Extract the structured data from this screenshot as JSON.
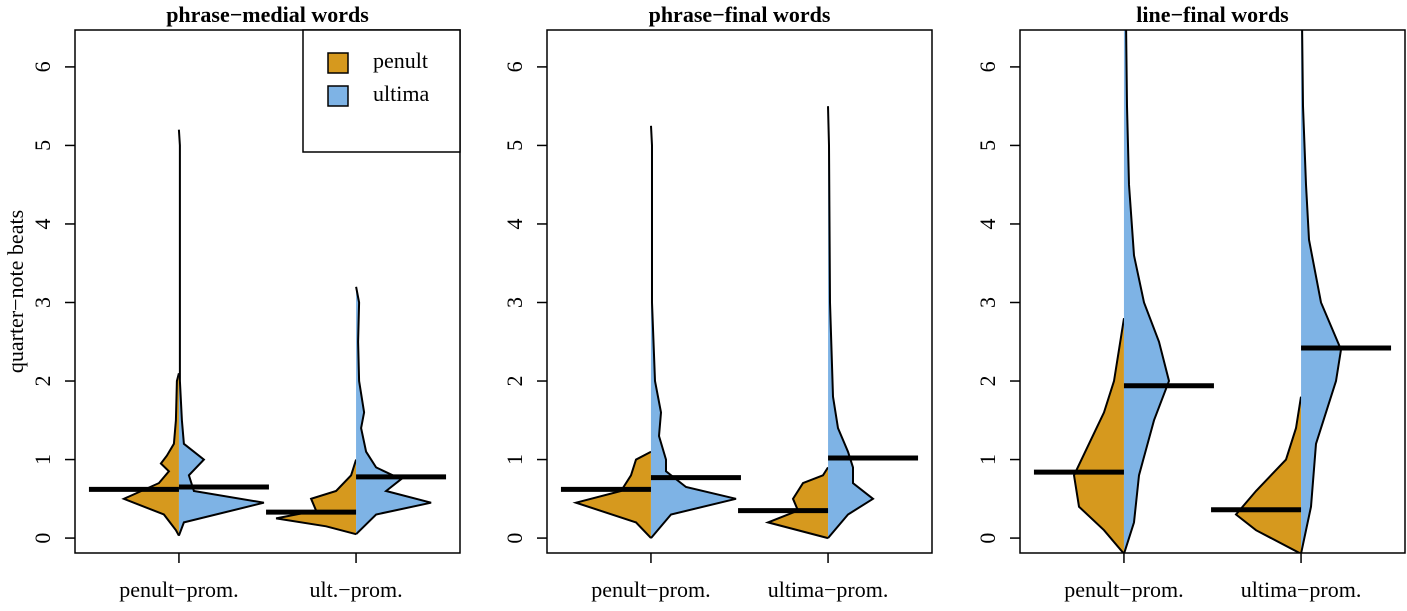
{
  "chart_data": [
    {
      "type": "violin",
      "title": "phrase−medial words",
      "ylabel": "quarter−note beats",
      "categories": [
        "penult−prom.",
        "ult.−prom."
      ],
      "ylim": [
        -0.19,
        6.47
      ],
      "yticks": [
        0,
        1,
        2,
        3,
        4,
        5,
        6
      ],
      "legend": "topright",
      "series": [
        {
          "name": "penult",
          "color": "#d6991e",
          "medians": [
            0.62,
            0.33
          ],
          "violins": [
            {
              "y": [
                0.03,
                0.1,
                0.3,
                0.5,
                0.7,
                0.85,
                0.95,
                1.05,
                1.2,
                1.5,
                2.0,
                2.1
              ],
              "density": [
                0,
                0.03,
                0.15,
                0.55,
                0.2,
                0.1,
                0.18,
                0.12,
                0.05,
                0.03,
                0.02,
                0
              ]
            },
            {
              "y": [
                0.05,
                0.15,
                0.25,
                0.35,
                0.5,
                0.6,
                0.8,
                1.0
              ],
              "density": [
                0,
                0.3,
                0.8,
                0.4,
                0.45,
                0.2,
                0.05,
                0
              ]
            }
          ]
        },
        {
          "name": "ultima",
          "color": "#7eb3e5",
          "medians": [
            0.65,
            0.78
          ],
          "violins": [
            {
              "y": [
                0.03,
                0.2,
                0.45,
                0.6,
                0.8,
                1.0,
                1.2,
                1.5,
                2.0,
                3.0,
                5.0,
                5.2
              ],
              "density": [
                0,
                0.05,
                0.85,
                0.15,
                0.1,
                0.25,
                0.05,
                0.03,
                0.01,
                0.01,
                0.01,
                0
              ]
            },
            {
              "y": [
                0.05,
                0.3,
                0.45,
                0.6,
                0.75,
                0.9,
                1.1,
                1.4,
                1.6,
                2.0,
                2.5,
                3.0,
                3.2
              ],
              "density": [
                0,
                0.2,
                0.75,
                0.3,
                0.45,
                0.2,
                0.1,
                0.05,
                0.08,
                0.03,
                0.02,
                0.03,
                0
              ]
            }
          ]
        }
      ]
    },
    {
      "type": "violin",
      "title": "phrase−final words",
      "categories": [
        "penult−prom.",
        "ultima−prom."
      ],
      "ylim": [
        -0.19,
        6.47
      ],
      "yticks": [
        0,
        1,
        2,
        3,
        4,
        5,
        6
      ],
      "series": [
        {
          "name": "penult",
          "color": "#d6991e",
          "medians": [
            0.62,
            0.35
          ],
          "violins": [
            {
              "y": [
                0.0,
                0.2,
                0.45,
                0.6,
                0.8,
                1.0,
                1.1
              ],
              "density": [
                0,
                0.15,
                0.75,
                0.3,
                0.2,
                0.15,
                0
              ]
            },
            {
              "y": [
                0.0,
                0.2,
                0.35,
                0.5,
                0.7,
                0.8,
                0.9
              ],
              "density": [
                0,
                0.6,
                0.3,
                0.35,
                0.25,
                0.05,
                0
              ]
            }
          ]
        },
        {
          "name": "ultima",
          "color": "#7eb3e5",
          "medians": [
            0.77,
            1.02
          ],
          "violins": [
            {
              "y": [
                0.0,
                0.3,
                0.5,
                0.65,
                0.85,
                1.0,
                1.3,
                1.6,
                2.0,
                3.0,
                5.0,
                5.25
              ],
              "density": [
                0,
                0.2,
                0.85,
                0.35,
                0.15,
                0.15,
                0.08,
                0.1,
                0.04,
                0.01,
                0.01,
                0
              ]
            },
            {
              "y": [
                0.0,
                0.3,
                0.5,
                0.7,
                0.9,
                1.1,
                1.4,
                1.8,
                2.2,
                3.0,
                5.0,
                5.5
              ],
              "density": [
                0,
                0.2,
                0.45,
                0.25,
                0.25,
                0.2,
                0.1,
                0.05,
                0.04,
                0.02,
                0.01,
                0
              ]
            }
          ]
        }
      ]
    },
    {
      "type": "violin",
      "title": "line−final words",
      "categories": [
        "penult−prom.",
        "ultima−prom."
      ],
      "ylim": [
        -0.19,
        6.47
      ],
      "yticks": [
        0,
        1,
        2,
        3,
        4,
        5,
        6
      ],
      "series": [
        {
          "name": "penult",
          "color": "#d6991e",
          "medians": [
            0.84,
            0.36
          ],
          "violins": [
            {
              "y": [
                -0.2,
                0.1,
                0.4,
                0.8,
                1.2,
                1.6,
                2.0,
                2.4,
                2.8
              ],
              "density": [
                0,
                0.2,
                0.45,
                0.5,
                0.35,
                0.2,
                0.1,
                0.05,
                0
              ]
            },
            {
              "y": [
                -0.2,
                0.1,
                0.3,
                0.6,
                1.0,
                1.4,
                1.8
              ],
              "density": [
                0,
                0.45,
                0.65,
                0.45,
                0.15,
                0.05,
                0
              ]
            }
          ]
        },
        {
          "name": "ultima",
          "color": "#7eb3e5",
          "medians": [
            1.94,
            2.42
          ],
          "violins": [
            {
              "y": [
                -0.2,
                0.2,
                0.8,
                1.5,
                2.0,
                2.5,
                3.0,
                3.6,
                4.5,
                5.5,
                6.6
              ],
              "density": [
                0,
                0.1,
                0.15,
                0.3,
                0.45,
                0.35,
                0.2,
                0.1,
                0.05,
                0.03,
                0.02
              ]
            },
            {
              "y": [
                -0.2,
                0.4,
                1.2,
                2.0,
                2.4,
                3.0,
                3.8,
                4.5,
                5.5,
                6.6
              ],
              "density": [
                0,
                0.1,
                0.15,
                0.35,
                0.4,
                0.2,
                0.08,
                0.05,
                0.02,
                0.01
              ]
            }
          ]
        }
      ]
    }
  ]
}
